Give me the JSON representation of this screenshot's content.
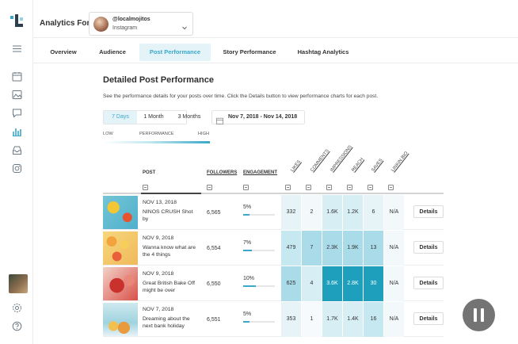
{
  "header": {
    "analytics_label": "Analytics For",
    "account_name": "@localmojitos",
    "account_network": "Instagram"
  },
  "tabs": [
    {
      "label": "Overview",
      "active": false
    },
    {
      "label": "Audience",
      "active": false
    },
    {
      "label": "Post Performance",
      "active": true
    },
    {
      "label": "Story Performance",
      "active": false
    },
    {
      "label": "Hashtag Analytics",
      "active": false
    }
  ],
  "main": {
    "title": "Detailed Post Performance",
    "subtitle": "See the performance details for your posts over time. Click the Details button to view performance charts for each post.",
    "ranges": [
      {
        "label": "7 Days",
        "active": true
      },
      {
        "label": "1 Month",
        "active": false
      },
      {
        "label": "3 Months",
        "active": false
      }
    ],
    "date_range": "Nov 7, 2018 - Nov 14, 2018",
    "legend": {
      "low": "LOW",
      "mid": "PERFORMANCE",
      "high": "HIGH"
    }
  },
  "table": {
    "headers": {
      "post": "POST",
      "followers": "FOLLOWERS",
      "engagement": "ENGAGEMENT",
      "likes": "LIKES",
      "comments": "COMMENTS",
      "impressions": "IMPRESSIONS",
      "reach": "REACH",
      "saves": "SAVES",
      "link_bio": "LINKIN.BIO"
    },
    "details_label": "Details",
    "rows": [
      {
        "date": "NOV 13, 2018",
        "caption": "NINOS CRUSH Shot by",
        "followers": "6,565",
        "engagement": "5%",
        "eng_fraction": 0.05,
        "likes": "332",
        "comments": "2",
        "impressions": "1.6K",
        "reach": "1.2K",
        "saves": "6",
        "link": "N/A"
      },
      {
        "date": "NOV 9, 2018",
        "caption": "Wanna know what are the 4 things",
        "followers": "6,554",
        "engagement": "7%",
        "eng_fraction": 0.07,
        "likes": "479",
        "comments": "7",
        "impressions": "2.3K",
        "reach": "1.9K",
        "saves": "13",
        "link": "N/A"
      },
      {
        "date": "NOV 9, 2018",
        "caption": "Great British Bake Off might be over",
        "followers": "6,550",
        "engagement": "10%",
        "eng_fraction": 0.1,
        "likes": "625",
        "comments": "4",
        "impressions": "3.6K",
        "reach": "2.8K",
        "saves": "30",
        "link": "N/A"
      },
      {
        "date": "NOV 7, 2018",
        "caption": "Dreaming about the next bank holiday",
        "followers": "6,551",
        "engagement": "5%",
        "eng_fraction": 0.05,
        "likes": "353",
        "comments": "1",
        "impressions": "1.7K",
        "reach": "1.4K",
        "saves": "16",
        "link": "N/A"
      }
    ]
  },
  "colors": {
    "accent": "#3aa8c8",
    "tab_active_bg": "#e4f3f8"
  },
  "icons": [
    "app-logo-icon",
    "menu-icon",
    "calendar-icon",
    "image-icon",
    "chat-icon",
    "analytics-icon",
    "inbox-icon",
    "instagram-icon",
    "settings-icon",
    "help-icon",
    "chevron-down-icon",
    "pause-icon"
  ]
}
